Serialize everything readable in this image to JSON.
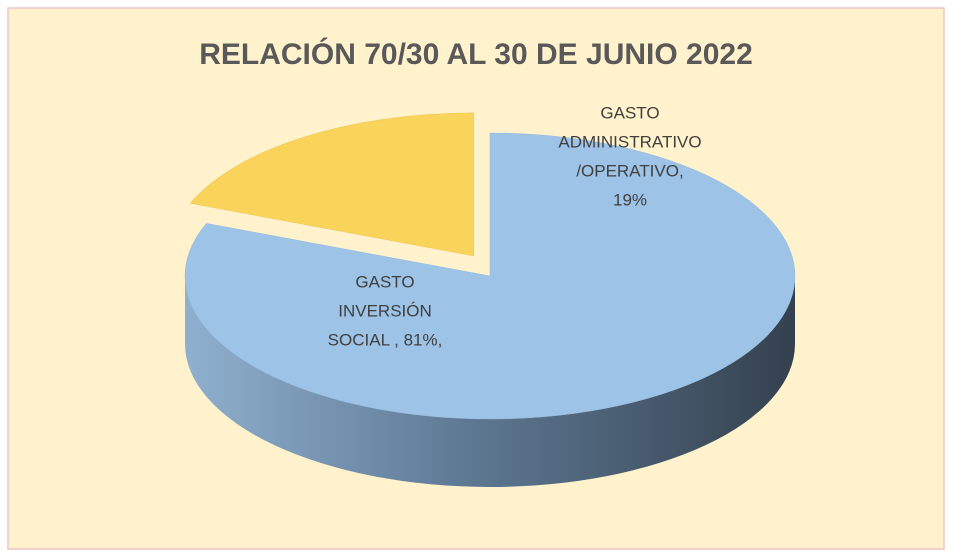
{
  "chart_data": {
    "type": "pie3d",
    "title": "RELACIÓN 70/30 AL 30 DE JUNIO 2022",
    "values": [
      81,
      19
    ],
    "value_labels": [
      [
        "GASTO",
        "INVERSIÓN",
        "SOCIAL , 81%,"
      ],
      [
        "GASTO",
        "ADMINISTRATIVO",
        "/OPERATIVO,",
        "19%"
      ]
    ],
    "colors": [
      "#9dc3e6",
      "#f9d35a"
    ]
  }
}
